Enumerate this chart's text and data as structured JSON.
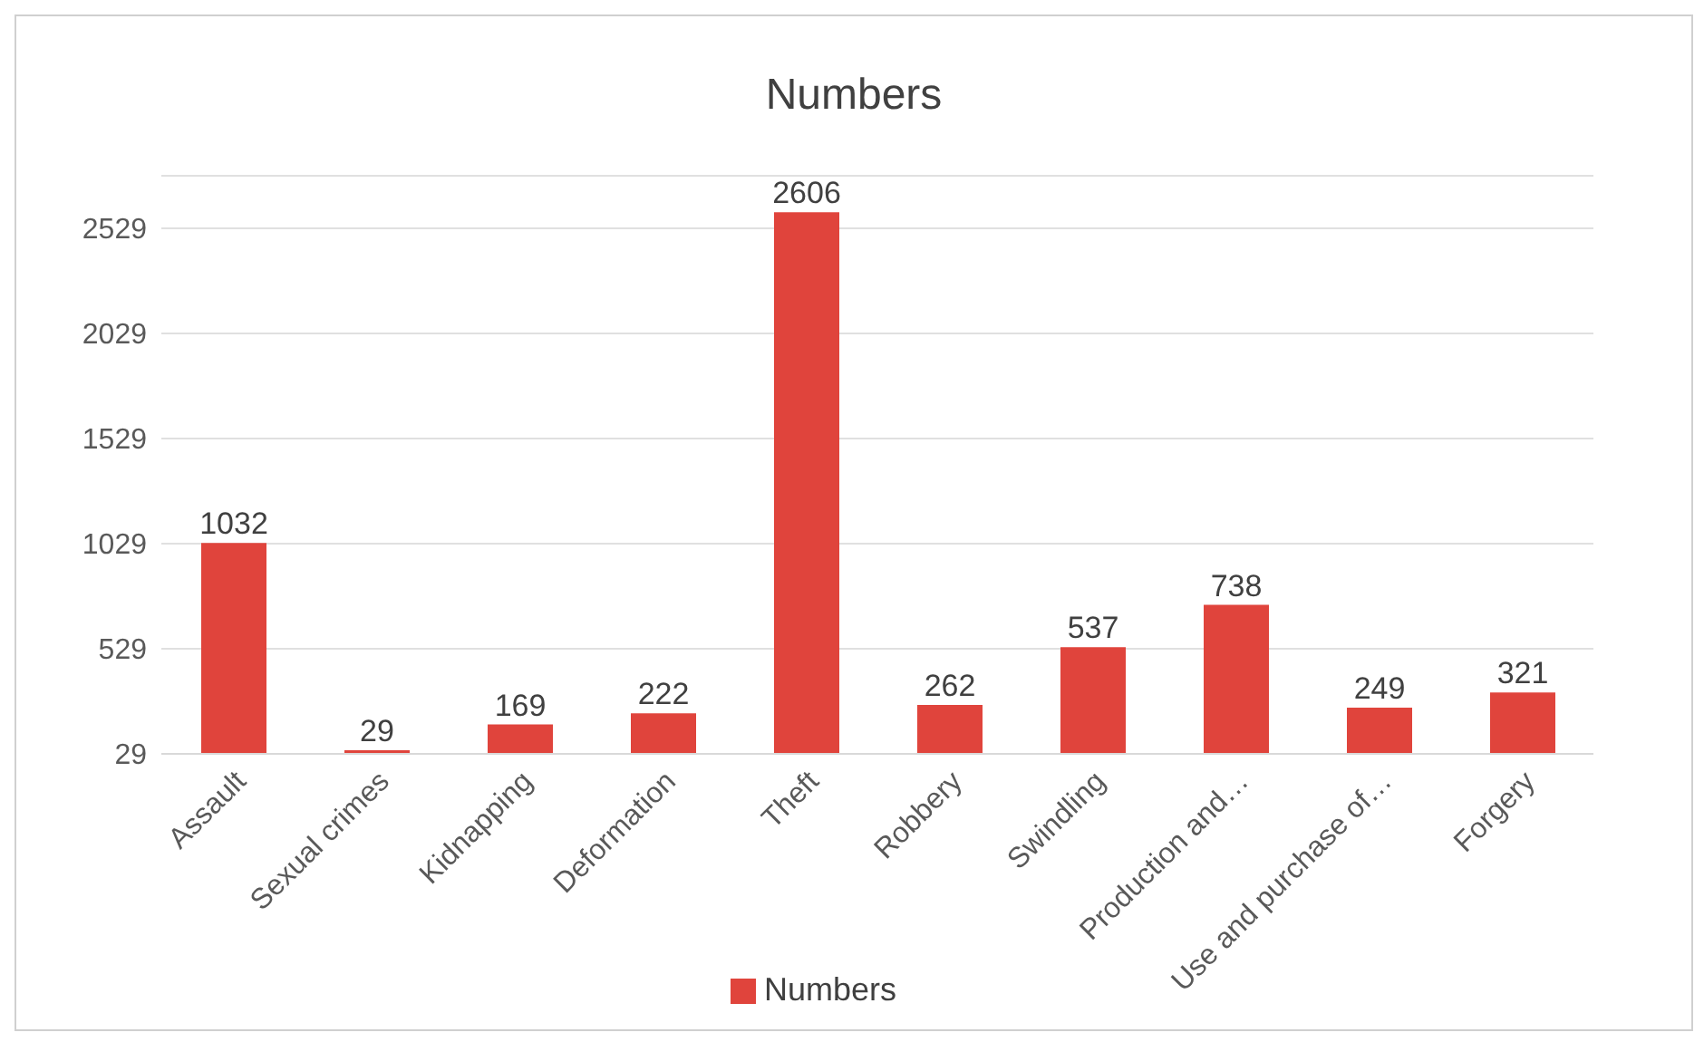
{
  "chart_data": {
    "type": "bar",
    "title": "Numbers",
    "categories": [
      "Assault",
      "Sexual crimes",
      "Kidnapping",
      "Deformation",
      "Theft",
      "Robbery",
      "Swindling",
      "Production and…",
      "Use and purchase of…",
      "Forgery"
    ],
    "series": [
      {
        "name": "Numbers",
        "color": "#e0443c",
        "values": [
          1032,
          29,
          169,
          222,
          2606,
          262,
          537,
          738,
          249,
          321
        ]
      }
    ],
    "ylim": [
      29,
      2779
    ],
    "yticks": [
      29,
      529,
      1029,
      1529,
      2029,
      2529
    ],
    "grid": "y",
    "legend": "bottom",
    "data_labels": true
  }
}
